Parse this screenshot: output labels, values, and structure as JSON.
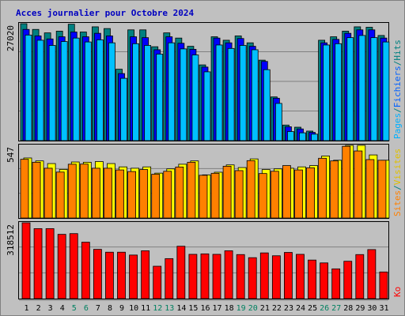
{
  "chart_data": [
    {
      "type": "bar",
      "title": "Acces journalier pour Octobre 2024",
      "categories": [
        "1",
        "2",
        "3",
        "4",
        "5",
        "6",
        "7",
        "8",
        "9",
        "10",
        "11",
        "12",
        "13",
        "14",
        "15",
        "16",
        "17",
        "18",
        "19",
        "20",
        "21",
        "22",
        "23",
        "24",
        "25",
        "26",
        "27",
        "28",
        "29",
        "30",
        "31"
      ],
      "weekend_days": [
        "5",
        "6",
        "12",
        "13",
        "19",
        "20",
        "26",
        "27"
      ],
      "axis_max_label": "27020",
      "ylim": [
        0,
        27020
      ],
      "grid": true,
      "legend": [
        "Pages",
        "/",
        "Fichiers",
        "/",
        "Hits"
      ],
      "series": [
        {
          "name": "Hits",
          "color": "#008080",
          "values": [
            27020,
            25700,
            24900,
            25300,
            26900,
            25100,
            26300,
            25900,
            16500,
            25600,
            25600,
            21700,
            24900,
            23700,
            21800,
            17500,
            24000,
            23200,
            24200,
            22600,
            18600,
            10100,
            3600,
            3100,
            2200,
            23200,
            24000,
            25300,
            26300,
            26200,
            24300
          ]
        },
        {
          "name": "Fichiers",
          "color": "#0000ff",
          "values": [
            25700,
            24200,
            23500,
            24000,
            25100,
            24000,
            24800,
            24200,
            15500,
            24000,
            23800,
            21000,
            24000,
            22500,
            21100,
            17000,
            23700,
            22600,
            23600,
            21800,
            18300,
            9800,
            3200,
            2700,
            1900,
            22600,
            23400,
            24800,
            25600,
            25600,
            23700
          ]
        },
        {
          "name": "Pages",
          "color": "#00c0ff",
          "values": [
            24400,
            23200,
            22000,
            22900,
            23700,
            22800,
            23300,
            22600,
            14400,
            22400,
            22000,
            20000,
            22600,
            21200,
            19800,
            15900,
            22100,
            21300,
            22000,
            21000,
            16400,
            8600,
            2100,
            1800,
            1500,
            22100,
            22400,
            23800,
            24300,
            23800,
            22800
          ]
        }
      ]
    },
    {
      "type": "bar",
      "axis_max_label": "547",
      "ylim": [
        0,
        547
      ],
      "grid": true,
      "legend": [
        "Sites",
        "/",
        "Visites"
      ],
      "series": [
        {
          "name": "Visites",
          "color": "#ffff00",
          "values": [
            452,
            430,
            410,
            366,
            422,
            420,
            425,
            410,
            385,
            375,
            385,
            338,
            370,
            405,
            430,
            325,
            345,
            400,
            380,
            445,
            365,
            370,
            375,
            385,
            395,
            467,
            435,
            547,
            547,
            475,
            435
          ]
        },
        {
          "name": "Sites",
          "color": "#ff8000",
          "values": [
            442,
            420,
            375,
            346,
            405,
            406,
            375,
            375,
            362,
            350,
            365,
            330,
            352,
            384,
            420,
            322,
            337,
            390,
            357,
            432,
            335,
            352,
            395,
            362,
            378,
            450,
            430,
            540,
            505,
            440,
            435
          ]
        }
      ]
    },
    {
      "type": "bar",
      "axis_max_label": "318512",
      "ylim": [
        0,
        318512
      ],
      "grid": true,
      "legend": [
        "Ko"
      ],
      "series": [
        {
          "name": "Ko",
          "color": "#ff0000",
          "values": [
            318512,
            294000,
            294000,
            270000,
            273000,
            237000,
            207000,
            195000,
            195000,
            183000,
            201000,
            136000,
            168000,
            220000,
            186000,
            188000,
            186000,
            201000,
            185000,
            172000,
            192000,
            180000,
            194000,
            186000,
            162000,
            150000,
            125000,
            157000,
            185000,
            206000,
            112000
          ]
        }
      ]
    }
  ]
}
